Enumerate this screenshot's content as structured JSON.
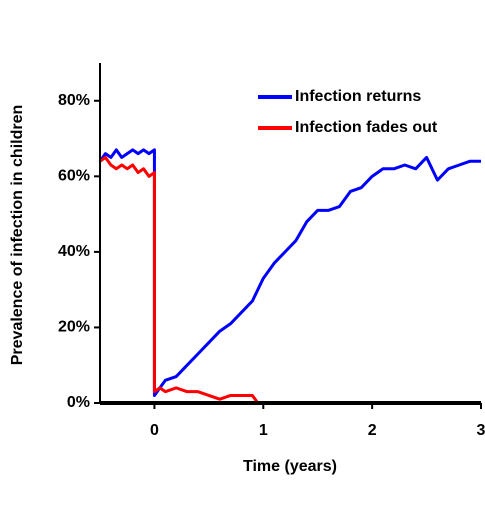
{
  "chart_data": {
    "type": "line",
    "xlabel": "Time (years)",
    "ylabel": "Prevalence of infection in children",
    "xlim": [
      -0.5,
      3
    ],
    "xticks": [
      0,
      1,
      2,
      3
    ],
    "ylim": [
      0,
      90
    ],
    "yticks": [
      {
        "value": 0,
        "label": "0%"
      },
      {
        "value": 20,
        "label": "20%"
      },
      {
        "value": 40,
        "label": "40%"
      },
      {
        "value": 60,
        "label": "60%"
      },
      {
        "value": 80,
        "label": "80%"
      }
    ],
    "legend": "upper right",
    "series": [
      {
        "name": "Infection returns",
        "color": "#0000ff",
        "x": [
          -0.5,
          -0.45,
          -0.4,
          -0.35,
          -0.3,
          -0.25,
          -0.2,
          -0.15,
          -0.1,
          -0.05,
          0,
          0,
          0.05,
          0.1,
          0.2,
          0.3,
          0.4,
          0.5,
          0.6,
          0.7,
          0.8,
          0.9,
          1.0,
          1.1,
          1.2,
          1.3,
          1.4,
          1.5,
          1.6,
          1.7,
          1.8,
          1.9,
          2.0,
          2.1,
          2.2,
          2.3,
          2.4,
          2.5,
          2.6,
          2.7,
          2.8,
          2.9,
          3.0
        ],
        "values": [
          64,
          66,
          65,
          67,
          65,
          66,
          67,
          66,
          67,
          66,
          67,
          2,
          4,
          6,
          7,
          10,
          13,
          16,
          19,
          21,
          24,
          27,
          33,
          37,
          40,
          43,
          48,
          51,
          51,
          52,
          56,
          57,
          60,
          62,
          62,
          63,
          62,
          65,
          59,
          62,
          63,
          64,
          64
        ]
      },
      {
        "name": "Infection fades out",
        "color": "#ff0000",
        "x": [
          -0.5,
          -0.45,
          -0.4,
          -0.35,
          -0.3,
          -0.25,
          -0.2,
          -0.15,
          -0.1,
          -0.05,
          0,
          0,
          0.05,
          0.1,
          0.2,
          0.3,
          0.4,
          0.5,
          0.6,
          0.7,
          0.8,
          0.9,
          0.95,
          1.0,
          1.5,
          2.0,
          2.5,
          3.0
        ],
        "values": [
          64,
          65,
          63,
          62,
          63,
          62,
          63,
          61,
          62,
          60,
          61,
          3,
          4,
          3,
          4,
          3,
          3,
          2,
          1,
          2,
          2,
          2,
          0,
          0,
          0,
          0,
          0,
          0
        ]
      }
    ]
  }
}
